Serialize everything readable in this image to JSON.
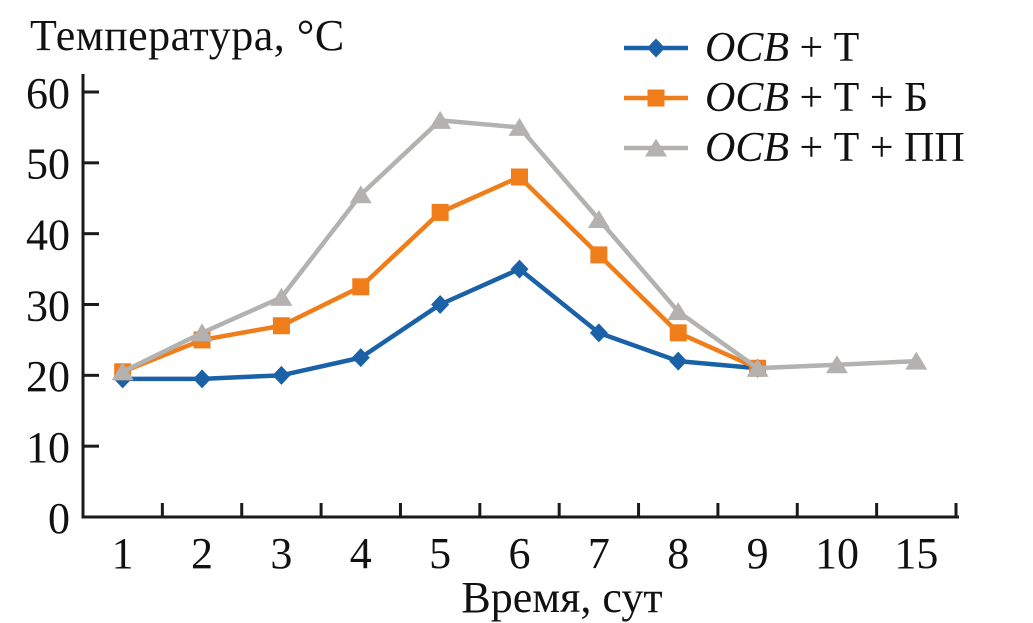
{
  "chart_data": {
    "type": "line",
    "title": "Температура, °C",
    "xlabel": "Время, сут",
    "ylabel": "Температура, °C",
    "categories": [
      "1",
      "2",
      "3",
      "4",
      "5",
      "6",
      "7",
      "8",
      "9",
      "10",
      "15"
    ],
    "y_ticks": [
      0,
      10,
      20,
      30,
      40,
      50,
      60
    ],
    "ylim": [
      0,
      60
    ],
    "grid": false,
    "legend_position": "top-right",
    "axis_color": "#1a1a1a",
    "series": [
      {
        "name": "ОСВ + Т",
        "name_italic_part": "ОСВ",
        "name_rest": " + Т",
        "color": "#1b61a8",
        "marker": "diamond",
        "values": [
          19.5,
          19.5,
          20,
          22.5,
          30,
          35,
          26,
          22,
          21,
          null,
          null
        ]
      },
      {
        "name": "ОСВ + Т + Б",
        "name_italic_part": "ОСВ",
        "name_rest": " + Т + Б",
        "color": "#ef7d1a",
        "marker": "square",
        "values": [
          20.5,
          25,
          27,
          32.5,
          43,
          48,
          37,
          26,
          21,
          null,
          null
        ]
      },
      {
        "name": "ОСВ + Т + ПП",
        "name_italic_part": "ОСВ",
        "name_rest": " + Т + ПП",
        "color": "#b4b2b0",
        "marker": "triangle",
        "values": [
          20.5,
          26,
          31,
          45.5,
          56,
          55,
          42,
          29,
          21,
          21.5,
          22
        ]
      }
    ]
  }
}
